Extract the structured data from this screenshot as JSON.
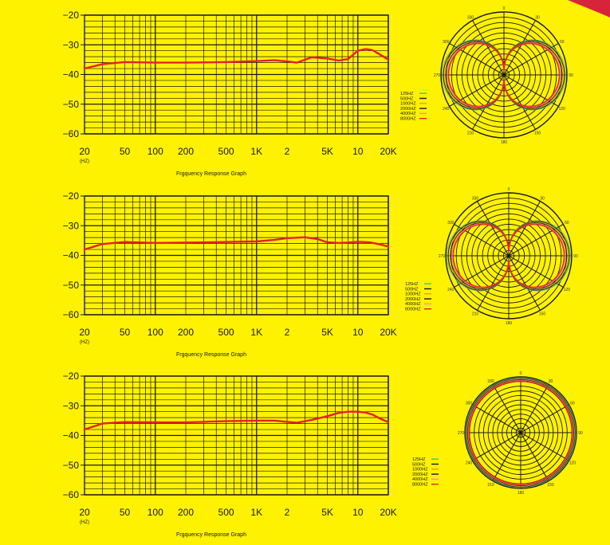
{
  "colors": {
    "background": "#FFF200",
    "grid": "#1a1a1a",
    "curve": "#E8202A",
    "ribbon": "#D8243A"
  },
  "chart_data": [
    {
      "type": "line",
      "title": "Frgquency Response Graph",
      "x_tick_labels": [
        "20",
        "50",
        "100",
        "200",
        "500",
        "1K",
        "2",
        "5K",
        "10",
        "20K"
      ],
      "x_unit_label": "(HZ)",
      "y_tick_labels": [
        "−20",
        "−30",
        "−40",
        "−50",
        "−60"
      ],
      "x_scale": "log",
      "xlim": [
        20,
        20000
      ],
      "ylim": [
        -60,
        -20
      ],
      "grid": true,
      "series": [
        {
          "color": "#E8202A",
          "x": [
            20,
            30,
            50,
            100,
            200,
            500,
            1000,
            1500,
            2000,
            2500,
            3500,
            5000,
            6500,
            8000,
            10000,
            12000,
            14000,
            17000,
            20000
          ],
          "y": [
            -38,
            -36.5,
            -35.8,
            -36,
            -36,
            -35.8,
            -35.5,
            -35.2,
            -35.6,
            -36,
            -34.2,
            -34.6,
            -35.3,
            -34.8,
            -32,
            -31.4,
            -31.8,
            -33.5,
            -35
          ]
        }
      ]
    },
    {
      "type": "line",
      "title": "Frgquency Response Graph",
      "x_tick_labels": [
        "20",
        "50",
        "100",
        "200",
        "500",
        "1K",
        "2",
        "5K",
        "10",
        "20K"
      ],
      "x_unit_label": "(HZ)",
      "y_tick_labels": [
        "−20",
        "−30",
        "−40",
        "−50",
        "−60"
      ],
      "x_scale": "log",
      "xlim": [
        20,
        20000
      ],
      "ylim": [
        -60,
        -20
      ],
      "grid": true,
      "series": [
        {
          "color": "#E8202A",
          "x": [
            20,
            30,
            50,
            100,
            200,
            500,
            1000,
            1500,
            2000,
            3000,
            4000,
            5000,
            6500,
            8000,
            10000,
            13000,
            16000,
            20000
          ],
          "y": [
            -38,
            -36.2,
            -35.5,
            -35.8,
            -35.7,
            -35.5,
            -35.3,
            -34.8,
            -34.2,
            -33.9,
            -34.5,
            -35.6,
            -35.8,
            -35.7,
            -35.4,
            -35.6,
            -36.2,
            -37
          ]
        }
      ]
    },
    {
      "type": "line",
      "title": "Frgquency Response Graph",
      "x_tick_labels": [
        "20",
        "50",
        "100",
        "200",
        "500",
        "1K",
        "2",
        "5K",
        "10",
        "20K"
      ],
      "x_unit_label": "(HZ)",
      "y_tick_labels": [
        "−20",
        "−30",
        "−40",
        "−50",
        "−60"
      ],
      "x_scale": "log",
      "xlim": [
        20,
        20000
      ],
      "ylim": [
        -60,
        -20
      ],
      "grid": true,
      "series": [
        {
          "color": "#E8202A",
          "x": [
            20,
            30,
            50,
            100,
            200,
            500,
            1000,
            1500,
            2000,
            2500,
            3500,
            5000,
            6500,
            8000,
            10000,
            12000,
            14000,
            17000,
            20000
          ],
          "y": [
            -38,
            -36,
            -35.5,
            -35.6,
            -35.6,
            -35.2,
            -35,
            -35,
            -35.4,
            -35.7,
            -34.8,
            -33.5,
            -32.4,
            -32,
            -32,
            -32.3,
            -33,
            -34.5,
            -35.5
          ]
        }
      ]
    },
    {
      "type": "polar",
      "pattern": "figure-8",
      "angle_labels": [
        "0",
        "30",
        "60",
        "90",
        "120",
        "150",
        "180",
        "210",
        "240",
        "270",
        "300",
        "330"
      ],
      "legend": [
        "125HZ",
        "500HZ",
        "1000HZ",
        "2000HZ",
        "4000HZ",
        "8000HZ"
      ],
      "legend_colors": [
        "#4FB89A",
        "#1a1a1a",
        "#E8A21B",
        "#1a1a1a",
        "#F28FB3",
        "#E8202A"
      ],
      "grid_rings": 12,
      "grid_spokes": 12
    },
    {
      "type": "polar",
      "pattern": "figure-8",
      "angle_labels": [
        "0",
        "30",
        "60",
        "90",
        "120",
        "150",
        "180",
        "210",
        "240",
        "270",
        "300",
        "330"
      ],
      "legend": [
        "125HZ",
        "500HZ",
        "1000HZ",
        "2000HZ",
        "4000HZ",
        "8000HZ"
      ],
      "legend_colors": [
        "#4FB89A",
        "#1a1a1a",
        "#E8A21B",
        "#1a1a1a",
        "#F28FB3",
        "#E8202A"
      ],
      "grid_rings": 12,
      "grid_spokes": 12
    },
    {
      "type": "polar",
      "pattern": "omni",
      "angle_labels": [
        "0",
        "30",
        "60",
        "90",
        "120",
        "150",
        "180",
        "210",
        "240",
        "270",
        "300",
        "330"
      ],
      "legend": [
        "125HZ",
        "500HZ",
        "1000HZ",
        "2000HZ",
        "4000HZ",
        "8000HZ"
      ],
      "legend_colors": [
        "#4FB89A",
        "#1a1a1a",
        "#E8A21B",
        "#1a1a1a",
        "#F28FB3",
        "#E8202A"
      ],
      "grid_rings": 12,
      "grid_spokes": 12
    }
  ]
}
